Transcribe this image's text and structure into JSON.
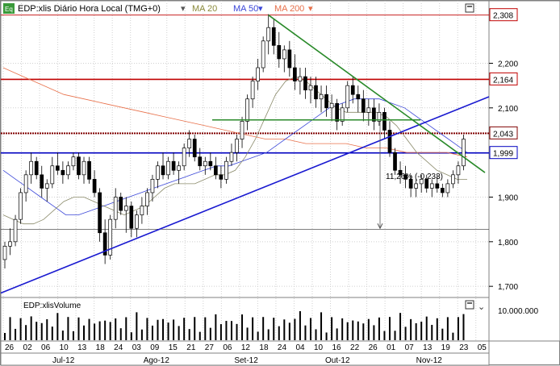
{
  "header": {
    "icon_label": "Eq",
    "title": "EDP:xlis Diário Hora Local (TMG+0)",
    "ma20": "MA 20",
    "ma50": "MA 50",
    "ma200": "MA 200"
  },
  "volume": {
    "title": "EDP:xlisVolume"
  },
  "colors": {
    "up": "#000000",
    "down": "#000000",
    "ma20": "#8a8a6a",
    "ma50": "#3a46d8",
    "ma200": "#e8704a",
    "red_level": "#c00000",
    "blue_level": "#0000c0",
    "trend_green": "#2a8a2a"
  },
  "chart_data": {
    "type": "candlestick",
    "title": "EDP:xlis Diário Hora Local (TMG+0)",
    "y_ticks": [
      "2,200",
      "2,100",
      "1,900",
      "1,800",
      "1,700"
    ],
    "y_tick_values": [
      2.2,
      2.1,
      1.9,
      1.8,
      1.7
    ],
    "ylim": [
      1.675,
      2.34
    ],
    "level_labels": [
      "2,308",
      "2,164",
      "2,043",
      "1,999"
    ],
    "levels": [
      {
        "label": "2,308",
        "value": 2.308,
        "color": "#c00000",
        "style": "thin"
      },
      {
        "label": "2,164",
        "value": 2.164,
        "color": "#c00000",
        "style": "thick"
      },
      {
        "label": "2,043",
        "value": 2.043,
        "color": "#800000",
        "style": "dotted"
      },
      {
        "label": "1,999",
        "value": 1.999,
        "color": "#0000c0",
        "style": "thick"
      }
    ],
    "extra_hlines": [
      1.828
    ],
    "annotation": "11,26% (-0,233)",
    "volume_axis_label": "10.000.000",
    "x_day_labels": [
      "26",
      "02",
      "06",
      "10",
      "13",
      "18",
      "24",
      "03",
      "09",
      "15",
      "21",
      "27",
      "06",
      "12",
      "18",
      "24",
      "04",
      "10",
      "16",
      "22",
      "26",
      "01",
      "07",
      "13",
      "19",
      "23",
      "05"
    ],
    "x_month_labels": [
      "Jul-12",
      "Ago-12",
      "Set-12",
      "Out-12",
      "Nov-12"
    ],
    "candles_ohlc": [
      [
        1.76,
        1.8,
        1.74,
        1.79
      ],
      [
        1.79,
        1.83,
        1.77,
        1.8
      ],
      [
        1.8,
        1.86,
        1.79,
        1.85
      ],
      [
        1.85,
        1.92,
        1.84,
        1.91
      ],
      [
        1.91,
        1.96,
        1.89,
        1.95
      ],
      [
        1.95,
        2.0,
        1.93,
        1.98
      ],
      [
        1.98,
        1.99,
        1.94,
        1.95
      ],
      [
        1.95,
        1.97,
        1.9,
        1.92
      ],
      [
        1.92,
        1.94,
        1.89,
        1.93
      ],
      [
        1.93,
        1.99,
        1.92,
        1.97
      ],
      [
        1.97,
        2.0,
        1.95,
        1.96
      ],
      [
        1.96,
        1.98,
        1.93,
        1.95
      ],
      [
        1.95,
        1.98,
        1.94,
        1.97
      ],
      [
        1.97,
        2.0,
        1.96,
        1.99
      ],
      [
        1.99,
        2.0,
        1.94,
        1.95
      ],
      [
        1.95,
        1.99,
        1.93,
        1.98
      ],
      [
        1.98,
        1.99,
        1.93,
        1.94
      ],
      [
        1.94,
        1.96,
        1.9,
        1.91
      ],
      [
        1.91,
        1.92,
        1.8,
        1.82
      ],
      [
        1.82,
        1.85,
        1.75,
        1.77
      ],
      [
        1.77,
        1.86,
        1.76,
        1.85
      ],
      [
        1.85,
        1.92,
        1.83,
        1.9
      ],
      [
        1.9,
        1.91,
        1.86,
        1.87
      ],
      [
        1.87,
        1.9,
        1.82,
        1.88
      ],
      [
        1.88,
        1.89,
        1.81,
        1.83
      ],
      [
        1.83,
        1.87,
        1.81,
        1.86
      ],
      [
        1.86,
        1.9,
        1.84,
        1.88
      ],
      [
        1.88,
        1.92,
        1.86,
        1.91
      ],
      [
        1.91,
        1.95,
        1.89,
        1.94
      ],
      [
        1.94,
        1.98,
        1.92,
        1.97
      ],
      [
        1.97,
        2.0,
        1.94,
        1.95
      ],
      [
        1.95,
        1.99,
        1.94,
        1.98
      ],
      [
        1.98,
        2.0,
        1.95,
        1.96
      ],
      [
        1.96,
        1.98,
        1.93,
        1.97
      ],
      [
        1.97,
        2.02,
        1.96,
        2.01
      ],
      [
        2.01,
        2.05,
        1.99,
        2.03
      ],
      [
        2.03,
        2.04,
        1.98,
        1.99
      ],
      [
        1.99,
        2.01,
        1.96,
        1.97
      ],
      [
        1.97,
        1.99,
        1.95,
        1.98
      ],
      [
        1.98,
        2.0,
        1.96,
        1.97
      ],
      [
        1.97,
        1.99,
        1.94,
        1.95
      ],
      [
        1.95,
        1.97,
        1.92,
        1.94
      ],
      [
        1.94,
        1.99,
        1.93,
        1.98
      ],
      [
        1.98,
        2.02,
        1.97,
        2.0
      ],
      [
        2.0,
        2.04,
        1.98,
        2.03
      ],
      [
        2.03,
        2.08,
        2.01,
        2.07
      ],
      [
        2.07,
        2.13,
        2.05,
        2.12
      ],
      [
        2.12,
        2.17,
        2.1,
        2.16
      ],
      [
        2.16,
        2.21,
        2.14,
        2.19
      ],
      [
        2.19,
        2.26,
        2.18,
        2.25
      ],
      [
        2.25,
        2.31,
        2.22,
        2.28
      ],
      [
        2.28,
        2.3,
        2.22,
        2.24
      ],
      [
        2.24,
        2.27,
        2.19,
        2.21
      ],
      [
        2.21,
        2.24,
        2.18,
        2.23
      ],
      [
        2.23,
        2.25,
        2.17,
        2.19
      ],
      [
        2.19,
        2.22,
        2.14,
        2.16
      ],
      [
        2.16,
        2.19,
        2.13,
        2.17
      ],
      [
        2.17,
        2.19,
        2.12,
        2.14
      ],
      [
        2.14,
        2.17,
        2.11,
        2.15
      ],
      [
        2.15,
        2.17,
        2.1,
        2.12
      ],
      [
        2.12,
        2.15,
        2.09,
        2.13
      ],
      [
        2.13,
        2.15,
        2.08,
        2.1
      ],
      [
        2.1,
        2.13,
        2.07,
        2.11
      ],
      [
        2.11,
        2.12,
        2.05,
        2.07
      ],
      [
        2.07,
        2.11,
        2.06,
        2.1
      ],
      [
        2.1,
        2.16,
        2.09,
        2.15
      ],
      [
        2.15,
        2.17,
        2.11,
        2.13
      ],
      [
        2.13,
        2.15,
        2.09,
        2.12
      ],
      [
        2.12,
        2.14,
        2.07,
        2.09
      ],
      [
        2.09,
        2.12,
        2.06,
        2.1
      ],
      [
        2.1,
        2.12,
        2.05,
        2.07
      ],
      [
        2.07,
        2.11,
        2.06,
        2.09
      ],
      [
        2.09,
        2.1,
        2.03,
        2.05
      ],
      [
        2.05,
        2.07,
        1.99,
        2.0
      ],
      [
        2.0,
        2.01,
        1.95,
        1.96
      ],
      [
        1.96,
        1.98,
        1.93,
        1.95
      ],
      [
        1.95,
        1.97,
        1.92,
        1.94
      ],
      [
        1.94,
        1.95,
        1.9,
        1.92
      ],
      [
        1.92,
        1.94,
        1.9,
        1.93
      ],
      [
        1.93,
        1.95,
        1.91,
        1.94
      ],
      [
        1.94,
        1.95,
        1.91,
        1.92
      ],
      [
        1.92,
        1.94,
        1.9,
        1.93
      ],
      [
        1.93,
        1.95,
        1.91,
        1.92
      ],
      [
        1.92,
        1.93,
        1.9,
        1.91
      ],
      [
        1.91,
        1.94,
        1.9,
        1.93
      ],
      [
        1.93,
        1.96,
        1.92,
        1.95
      ],
      [
        1.95,
        1.98,
        1.93,
        1.97
      ],
      [
        1.97,
        2.04,
        1.96,
        2.03
      ]
    ],
    "ma20": [
      1.86,
      1.85,
      1.84,
      1.84,
      1.85,
      1.87,
      1.89,
      1.9,
      1.9,
      1.89,
      1.88,
      1.87,
      1.86,
      1.87,
      1.88,
      1.9,
      1.92,
      1.93,
      1.93,
      1.93,
      1.94,
      1.95,
      1.95,
      1.96,
      1.99,
      2.03,
      2.08,
      2.13,
      2.16,
      2.17,
      2.16,
      2.14,
      2.12,
      2.1,
      2.09,
      2.09,
      2.09,
      2.09,
      2.08,
      2.06,
      2.03,
      2.0,
      1.98,
      1.96,
      1.95,
      1.94,
      1.94
    ],
    "ma50": [
      1.96,
      1.94,
      1.92,
      1.9,
      1.88,
      1.86,
      1.86,
      1.87,
      1.88,
      1.89,
      1.9,
      1.91,
      1.92,
      1.93,
      1.94,
      1.95,
      1.96,
      1.97,
      1.97,
      1.98,
      1.99,
      2.0,
      2.02,
      2.04,
      2.06,
      2.08,
      2.1,
      2.11,
      2.12,
      2.12,
      2.12,
      2.11,
      2.1,
      2.08,
      2.06,
      2.04,
      2.02,
      2.0
    ],
    "ma200": [
      2.19,
      2.17,
      2.15,
      2.13,
      2.12,
      2.11,
      2.1,
      2.09,
      2.08,
      2.07,
      2.06,
      2.05,
      2.04,
      2.03,
      2.03,
      2.02,
      2.02,
      2.02,
      2.01,
      2.01,
      2.0,
      2.0,
      2.0,
      1.99
    ]
  }
}
